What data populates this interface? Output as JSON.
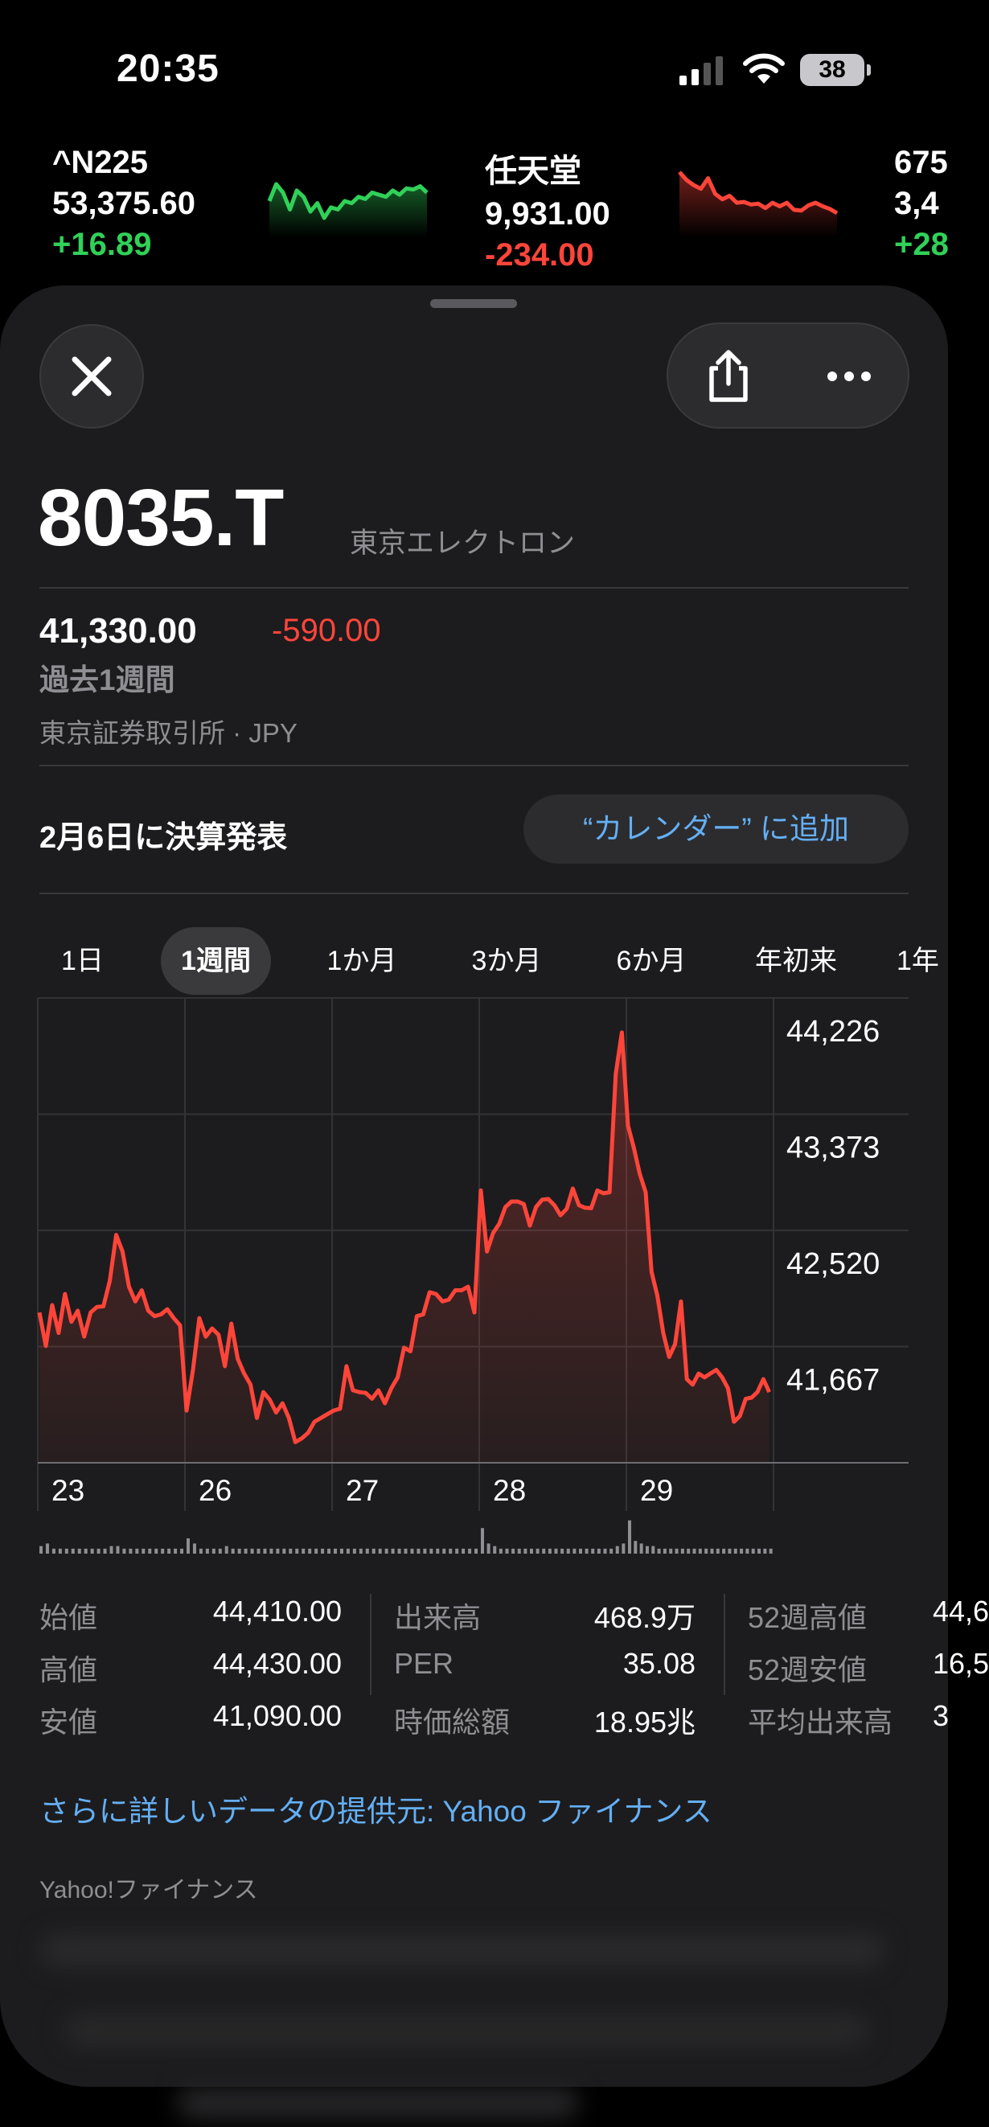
{
  "status_bar": {
    "time": "20:35",
    "battery": "38",
    "icons": [
      "cellular-signal-icon",
      "wifi-icon",
      "battery-icon"
    ]
  },
  "ticker_strip": [
    {
      "symbol": "^N225",
      "price": "53,375.60",
      "change": "+16.89",
      "trend": "up",
      "sparkline": [
        53340,
        53420,
        53380,
        53300,
        53390,
        53360,
        53290,
        53330,
        53260,
        53310,
        53300,
        53340,
        53330,
        53360,
        53350,
        53380,
        53370,
        53360,
        53390,
        53370,
        53400,
        53395,
        53410,
        53380
      ]
    },
    {
      "symbol": "任天堂",
      "price": "9,931.00",
      "change": "-234.00",
      "trend": "down",
      "sparkline": [
        10165,
        10120,
        10090,
        10070,
        10130,
        10040,
        10010,
        10030,
        9990,
        9995,
        9980,
        9985,
        9960,
        9990,
        9970,
        9990,
        9950,
        9945,
        9975,
        9990,
        9970,
        9955,
        9931
      ]
    },
    {
      "symbol": "675",
      "price": "3,4",
      "change": "+28",
      "trend": "up"
    }
  ],
  "header": {
    "close_icon": "close-icon",
    "share_icon": "share-icon",
    "more_icon": "more-icon"
  },
  "stock": {
    "symbol": "8035.T",
    "name": "東京エレクトロン",
    "price": "41,330.00",
    "change": "-590.00",
    "period": "過去1週間",
    "exchange": "東京証券取引所 · JPY"
  },
  "earnings": {
    "text": "2月6日に決算発表",
    "button": "“カレンダー” に追加"
  },
  "ranges": [
    {
      "label": "1日",
      "selected": false
    },
    {
      "label": "1週間",
      "selected": true
    },
    {
      "label": "1か月",
      "selected": false
    },
    {
      "label": "3か月",
      "selected": false
    },
    {
      "label": "6か月",
      "selected": false
    },
    {
      "label": "年初来",
      "selected": false
    },
    {
      "label": "1年",
      "selected": false
    }
  ],
  "colors": {
    "up": "#30d158",
    "down": "#ff453a",
    "link": "#64aff4",
    "background": "#1c1c1e"
  },
  "chart_data": {
    "type": "line",
    "y_tick_labels": [
      "44,226",
      "43,373",
      "42,520",
      "41,667"
    ],
    "y_ticks": [
      44226,
      43373,
      42520,
      41667
    ],
    "ylim": [
      40814,
      44226
    ],
    "grid": true,
    "series_color": "#ff453a",
    "days": [
      {
        "label": "23",
        "values": [
          41917,
          41672,
          41971,
          41767,
          42053,
          41849,
          41930,
          41740,
          41917,
          41958,
          41963,
          42148,
          42487,
          42365,
          42107,
          41998,
          42080,
          41930,
          41890,
          41903,
          41941,
          41876,
          41822
        ]
      },
      {
        "label": "26",
        "values": [
          41197,
          41496,
          41876,
          41740,
          41800,
          41754,
          41523,
          41835,
          41577,
          41469,
          41387,
          41143,
          41333,
          41278,
          41183,
          41251,
          41143,
          40966,
          40993,
          41034,
          41115,
          41143,
          41170
        ]
      },
      {
        "label": "27",
        "values": [
          41197,
          41211,
          41523,
          41346,
          41333,
          41327,
          41284,
          41346,
          41251,
          41360,
          41441,
          41659,
          41632,
          41890,
          41903,
          42066,
          42053,
          41998,
          42012,
          42080,
          42080,
          42107,
          41917
        ]
      },
      {
        "label": "28",
        "values": [
          42813,
          42365,
          42501,
          42569,
          42691,
          42732,
          42732,
          42713,
          42555,
          42691,
          42745,
          42750,
          42705,
          42631,
          42678,
          42827,
          42705,
          42686,
          42683,
          42813,
          42792,
          42800,
          43669,
          43973
        ]
      },
      {
        "label": "29",
        "values": [
          43289,
          43126,
          42936,
          42800,
          42216,
          42039,
          41767,
          41591,
          41686,
          41998,
          41428,
          41387,
          41469,
          41441,
          41469,
          41496,
          41441,
          41360,
          41115,
          41156,
          41284,
          41292,
          41333,
          41428,
          41333
        ]
      }
    ],
    "volume_relative": [
      [
        2,
        3,
        1,
        1,
        1,
        1,
        1,
        1,
        1,
        1,
        1,
        2,
        2,
        1,
        1,
        1,
        1,
        1,
        1,
        1,
        1,
        1,
        1
      ],
      [
        5,
        3,
        1,
        1,
        1,
        1,
        2,
        1,
        1,
        1,
        1,
        1,
        1,
        1,
        1,
        1,
        1,
        1,
        1,
        1,
        1,
        1,
        1
      ],
      [
        1,
        1,
        1,
        1,
        1,
        1,
        1,
        1,
        1,
        1,
        1,
        1,
        1,
        1,
        1,
        1,
        1,
        1,
        1,
        1,
        1,
        1,
        1
      ],
      [
        9,
        3,
        2,
        1,
        1,
        1,
        1,
        1,
        1,
        1,
        1,
        1,
        1,
        1,
        1,
        1,
        1,
        1,
        1,
        1,
        1,
        1,
        2,
        3
      ],
      [
        12,
        4,
        3,
        2,
        2,
        1,
        1,
        1,
        1,
        1,
        1,
        1,
        1,
        1,
        1,
        1,
        1,
        1,
        1,
        1,
        1,
        1,
        1,
        1,
        1
      ]
    ]
  },
  "stats": [
    [
      {
        "label": "始値",
        "value": "44,410.00"
      },
      {
        "label": "出来高",
        "value": "468.9万"
      },
      {
        "label": "52週高値",
        "value": "44,6"
      }
    ],
    [
      {
        "label": "高値",
        "value": "44,430.00"
      },
      {
        "label": "PER",
        "value": "35.08"
      },
      {
        "label": "52週安値",
        "value": "16,5"
      }
    ],
    [
      {
        "label": "安値",
        "value": "41,090.00"
      },
      {
        "label": "時価総額",
        "value": "18.95兆"
      },
      {
        "label": "平均出来高",
        "value": "3"
      }
    ]
  ],
  "more_data_link": "さらに詳しいデータの提供元: Yahoo ファイナンス",
  "news_source": "Yahoo!ファイナンス"
}
